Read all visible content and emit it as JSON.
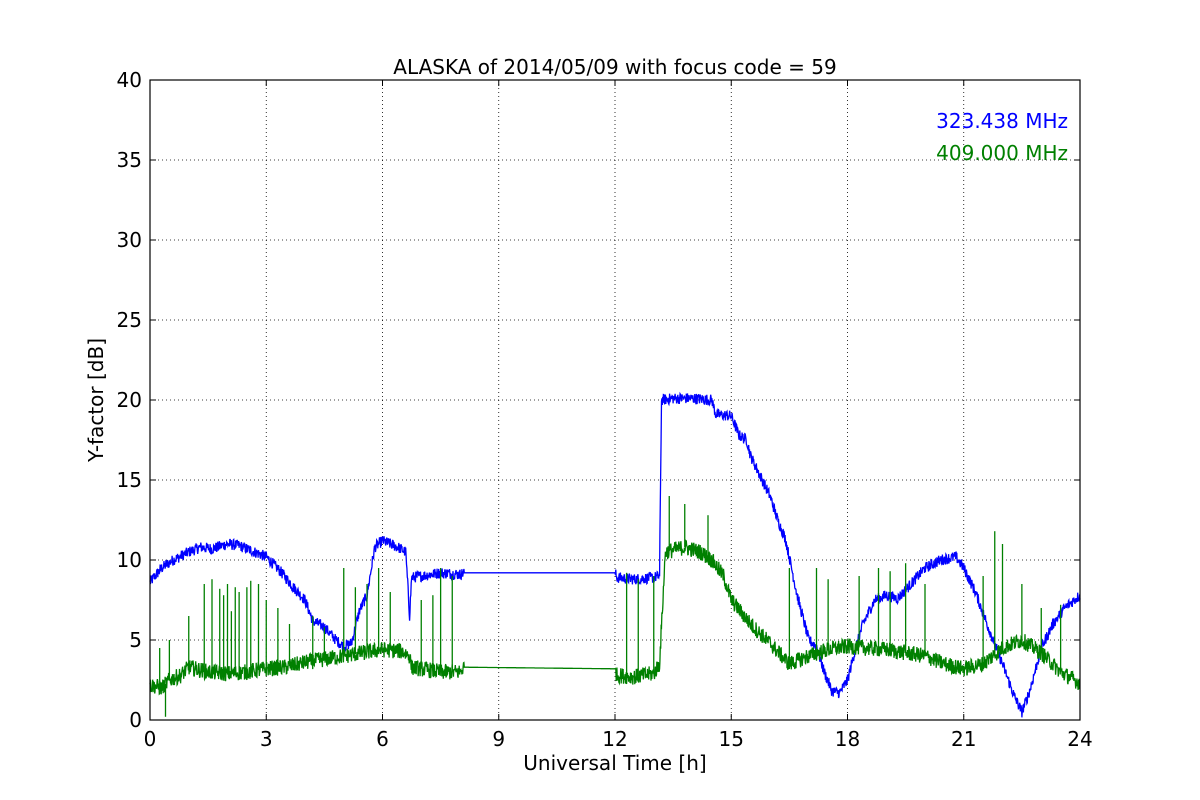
{
  "chart_data": {
    "type": "line",
    "title": "ALASKA of 2014/05/09 with focus code = 59",
    "xlabel": "Universal Time [h]",
    "ylabel": "Y-factor [dB]",
    "xlim": [
      0,
      24
    ],
    "ylim": [
      0,
      40
    ],
    "x_ticks": [
      0,
      3,
      6,
      9,
      12,
      15,
      18,
      21,
      24
    ],
    "y_ticks": [
      0,
      5,
      10,
      15,
      20,
      25,
      30,
      35,
      40
    ],
    "grid": true,
    "legend_position": "top-right",
    "series": [
      {
        "name": "323.438 MHz",
        "color": "#0000ff",
        "x": [
          0,
          0.3,
          0.6,
          1.0,
          1.3,
          1.6,
          2.0,
          2.3,
          2.6,
          3.0,
          3.4,
          3.7,
          4.0,
          4.2,
          4.5,
          4.8,
          5.0,
          5.2,
          5.4,
          5.6,
          5.8,
          6.0,
          6.2,
          6.4,
          6.6,
          6.7,
          6.75,
          7.0,
          7.5,
          8.0,
          8.1,
          12.0,
          12.05,
          12.5,
          13.0,
          13.15,
          13.2,
          13.5,
          14.0,
          14.5,
          14.6,
          15.0,
          15.2,
          15.4,
          15.5,
          15.8,
          16.0,
          16.2,
          16.4,
          16.6,
          16.7,
          17.0,
          17.2,
          17.4,
          17.6,
          17.8,
          18.0,
          18.2,
          18.4,
          18.7,
          19.0,
          19.3,
          19.6,
          20.0,
          20.4,
          20.8,
          21.0,
          21.3,
          21.6,
          22.0,
          22.3,
          22.5,
          22.7,
          23.0,
          23.3,
          23.6,
          24.0
        ],
        "values": [
          8.6,
          9.5,
          10.0,
          10.5,
          10.8,
          10.7,
          11.0,
          10.9,
          10.6,
          10.2,
          9.2,
          8.3,
          7.5,
          6.2,
          5.8,
          5.0,
          4.6,
          4.8,
          6.8,
          7.8,
          10.8,
          11.2,
          11.0,
          10.8,
          10.5,
          6.5,
          8.9,
          9.0,
          9.2,
          9.1,
          9.2,
          9.2,
          8.9,
          8.8,
          8.9,
          9.0,
          20.0,
          20.1,
          20.1,
          20.0,
          19.1,
          19.0,
          17.8,
          17.5,
          16.5,
          15.0,
          14.0,
          12.5,
          11.3,
          9.0,
          7.8,
          5.0,
          4.6,
          3.0,
          1.8,
          1.7,
          2.5,
          4.4,
          6.0,
          7.5,
          7.8,
          7.6,
          8.4,
          9.5,
          10.0,
          10.2,
          9.5,
          8.0,
          6.0,
          3.5,
          1.5,
          0.5,
          1.8,
          4.5,
          6.0,
          7.0,
          7.8
        ]
      },
      {
        "name": "409.000 MHz",
        "color": "#008000",
        "x": [
          0,
          0.3,
          0.5,
          0.8,
          1.0,
          1.5,
          2.0,
          2.5,
          3.0,
          3.5,
          4.0,
          4.5,
          5.0,
          5.5,
          6.0,
          6.5,
          6.7,
          6.75,
          7.0,
          7.5,
          8.0,
          8.1,
          12.0,
          12.05,
          12.5,
          13.0,
          13.15,
          13.3,
          13.8,
          14.2,
          14.5,
          14.8,
          15.0,
          15.5,
          16.0,
          16.5,
          17.0,
          17.5,
          18.0,
          18.5,
          19.0,
          19.5,
          20.0,
          20.5,
          21.0,
          21.5,
          22.0,
          22.5,
          23.0,
          23.5,
          24.0
        ],
        "values": [
          2.2,
          2.0,
          2.5,
          2.8,
          3.3,
          3.0,
          2.9,
          3.0,
          3.2,
          3.3,
          3.6,
          3.8,
          4.0,
          4.2,
          4.4,
          4.3,
          4.0,
          3.3,
          3.2,
          3.0,
          3.0,
          3.3,
          3.2,
          2.8,
          2.7,
          2.9,
          3.5,
          10.5,
          10.8,
          10.5,
          10.0,
          9.0,
          7.5,
          6.0,
          4.8,
          3.5,
          4.0,
          4.4,
          4.6,
          4.5,
          4.4,
          4.2,
          4.0,
          3.5,
          3.2,
          3.5,
          4.5,
          5.0,
          4.2,
          3.0,
          2.3
        ]
      }
    ],
    "spikes": {
      "409.000 MHz": [
        [
          0.25,
          4.5
        ],
        [
          0.4,
          0.2
        ],
        [
          0.5,
          5.0
        ],
        [
          1.0,
          6.5
        ],
        [
          1.4,
          8.5
        ],
        [
          1.6,
          8.8
        ],
        [
          1.8,
          8.2
        ],
        [
          1.9,
          7.8
        ],
        [
          2.0,
          8.5
        ],
        [
          2.1,
          6.8
        ],
        [
          2.2,
          8.3
        ],
        [
          2.3,
          8.0
        ],
        [
          2.5,
          8.3
        ],
        [
          2.6,
          8.7
        ],
        [
          2.8,
          8.5
        ],
        [
          3.0,
          7.5
        ],
        [
          3.3,
          7.0
        ],
        [
          3.6,
          6.0
        ],
        [
          4.2,
          6.5
        ],
        [
          4.5,
          5.8
        ],
        [
          5.0,
          9.5
        ],
        [
          5.3,
          8.3
        ],
        [
          5.6,
          8.5
        ],
        [
          5.9,
          9.5
        ],
        [
          6.2,
          8.0
        ],
        [
          7.0,
          7.5
        ],
        [
          7.3,
          7.8
        ],
        [
          7.5,
          9.5
        ],
        [
          7.8,
          9.0
        ],
        [
          12.3,
          9.2
        ],
        [
          12.6,
          8.8
        ],
        [
          13.0,
          9.0
        ],
        [
          13.4,
          14.0
        ],
        [
          13.8,
          13.5
        ],
        [
          14.4,
          12.8
        ],
        [
          14.7,
          9.5
        ],
        [
          16.5,
          9.5
        ],
        [
          17.2,
          9.5
        ],
        [
          17.5,
          8.8
        ],
        [
          18.3,
          9.0
        ],
        [
          18.8,
          9.5
        ],
        [
          19.1,
          9.3
        ],
        [
          19.5,
          9.8
        ],
        [
          20.0,
          8.5
        ],
        [
          21.5,
          9.0
        ],
        [
          21.8,
          11.8
        ],
        [
          22.0,
          11.0
        ],
        [
          22.5,
          8.5
        ],
        [
          23.0,
          7.0
        ],
        [
          23.5,
          7.2
        ]
      ]
    }
  }
}
